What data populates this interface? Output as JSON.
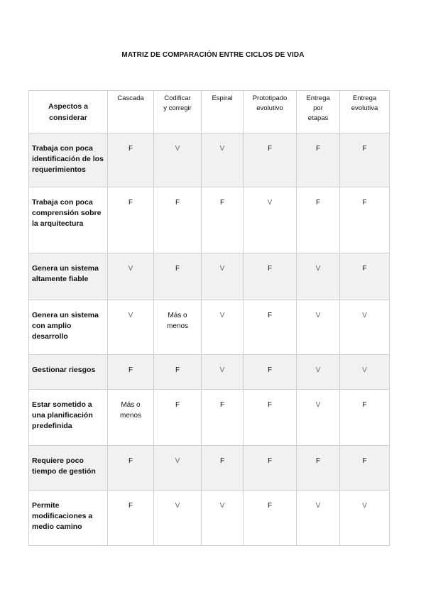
{
  "title": "MATRIZ DE COMPARACIÓN ENTRE CICLOS DE VIDA",
  "headers": [
    "Aspectos a considerar",
    "Cascada",
    "Codificar y corregir",
    "Espiral",
    "Prototipado evolutivo",
    "Entrega por etapas",
    "Entrega evolutiva"
  ],
  "rows": [
    {
      "aspect": "Trabaja con poca identificación de los requerimientos",
      "values": [
        "F",
        "V",
        "V",
        "F",
        "F",
        "F"
      ]
    },
    {
      "aspect": "Trabaja con poca comprensión sobre la arquitectura",
      "values": [
        "F",
        "F",
        "F",
        "V",
        "F",
        "F"
      ]
    },
    {
      "aspect": "Genera un sistema altamente fiable",
      "values": [
        "V",
        "F",
        "V",
        "F",
        "V",
        "F"
      ]
    },
    {
      "aspect": "Genera un sistema con amplio desarrollo",
      "values": [
        "V",
        "Más o menos",
        "V",
        "F",
        "V",
        "V"
      ]
    },
    {
      "aspect": "Gestionar riesgos",
      "values": [
        "F",
        "F",
        "V",
        "F",
        "V",
        "V"
      ]
    },
    {
      "aspect": "Estar sometido a una planificación predefinida",
      "values": [
        "Más o menos",
        "F",
        "F",
        "F",
        "V",
        "F"
      ]
    },
    {
      "aspect": "Requiere poco tiempo de gestión",
      "values": [
        "F",
        "V",
        "F",
        "F",
        "F",
        "F"
      ]
    },
    {
      "aspect": "Permite modificaciones a medio camino",
      "values": [
        "F",
        "V",
        "V",
        "F",
        "V",
        "V"
      ]
    }
  ]
}
